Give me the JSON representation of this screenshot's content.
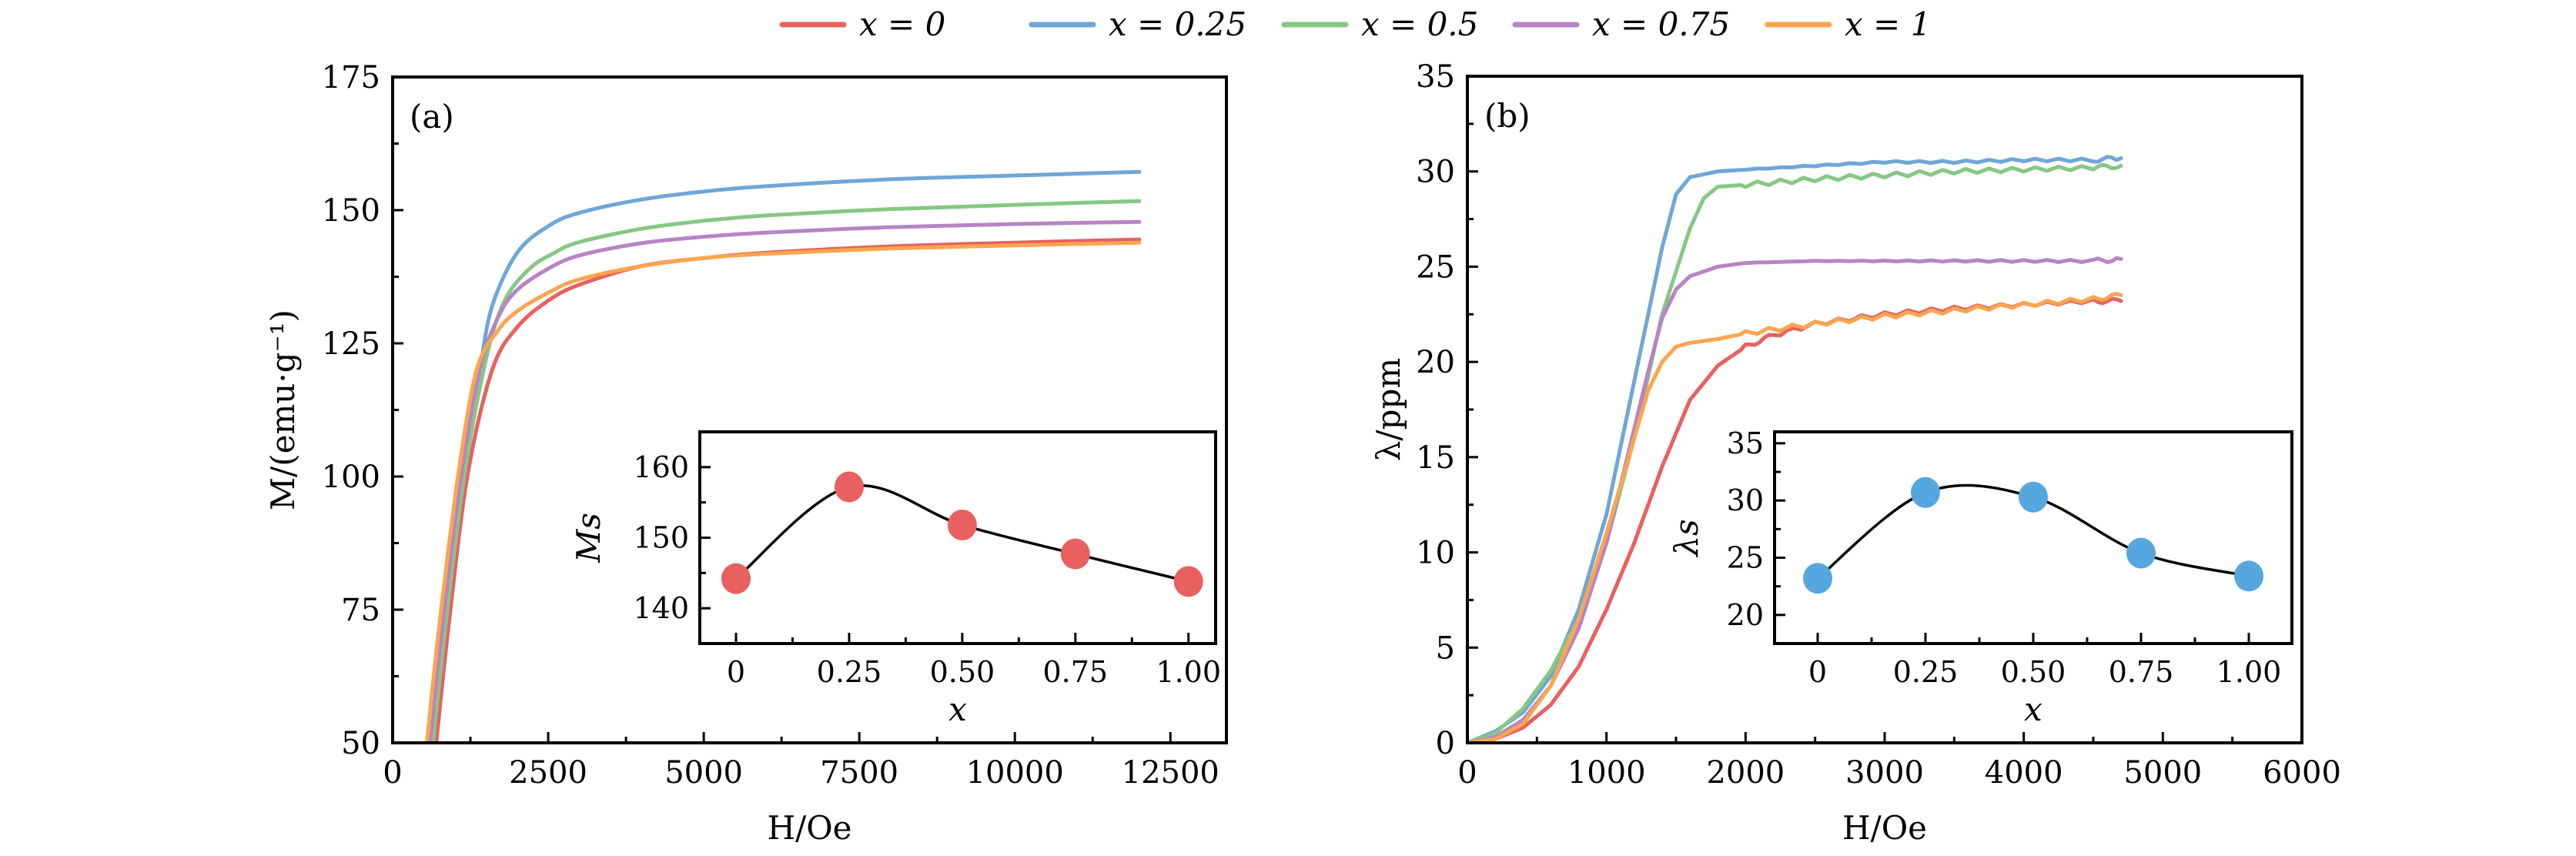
{
  "legend": {
    "placement": "top-center",
    "entries": [
      {
        "label": "x = 0",
        "color": "#e8605f"
      },
      {
        "label": "x = 0.25",
        "color": "#6fa6d6"
      },
      {
        "label": "x = 0.5",
        "color": "#86c784"
      },
      {
        "label": "x = 0.75",
        "color": "#b784c4"
      },
      {
        "label": "x = 1",
        "color": "#fba54f"
      }
    ]
  },
  "chart_data": [
    {
      "id": "a",
      "type": "line",
      "panel_label": "(a)",
      "xlabel": "H/Oe",
      "ylabel": "M/(emu·g⁻¹)",
      "xlim": [
        0,
        13400
      ],
      "ylim": [
        50,
        175
      ],
      "xticks": [
        0,
        2500,
        5000,
        7500,
        10000,
        12500
      ],
      "yticks": [
        50,
        75,
        100,
        125,
        150,
        175
      ],
      "xtick_labels": [
        "0",
        "2500",
        "5000",
        "7500",
        "10000",
        "12500"
      ],
      "ytick_labels": [
        "50",
        "75",
        "100",
        "125",
        "150",
        "175"
      ],
      "grid": false,
      "series": [
        {
          "name": "x = 0",
          "color": "#e8605f",
          "x": [
            700,
            900,
            1200,
            1600,
            2000,
            2500,
            3000,
            4000,
            5000,
            6000,
            8000,
            10000,
            12000
          ],
          "y": [
            50,
            72,
            100,
            120,
            128,
            133,
            136,
            139.5,
            141,
            142,
            143.2,
            143.9,
            144.5
          ]
        },
        {
          "name": "x = 0.25",
          "color": "#6fa6d6",
          "x": [
            600,
            800,
            1100,
            1400,
            1600,
            2000,
            2500,
            3000,
            4000,
            5000,
            6000,
            8000,
            10000,
            12000
          ],
          "y": [
            50,
            72,
            100,
            120,
            132,
            142,
            147,
            149.5,
            152,
            153.5,
            154.5,
            155.8,
            156.5,
            157.2
          ]
        },
        {
          "name": "x = 0.5",
          "color": "#86c784",
          "x": [
            650,
            850,
            1150,
            1500,
            1800,
            2200,
            2600,
            3000,
            4000,
            5000,
            6000,
            8000,
            10000,
            12000
          ],
          "y": [
            50,
            72,
            100,
            122,
            133,
            139,
            142,
            144,
            146.5,
            148,
            149,
            150.2,
            151,
            151.7
          ]
        },
        {
          "name": "x = 0.75",
          "color": "#b784c4",
          "x": [
            600,
            800,
            1100,
            1400,
            1700,
            2000,
            2500,
            3000,
            4000,
            5000,
            6000,
            8000,
            10000,
            12000
          ],
          "y": [
            50,
            72,
            100,
            120,
            130,
            135,
            139,
            141.5,
            143.8,
            145,
            145.8,
            146.8,
            147.4,
            147.8
          ]
        },
        {
          "name": "x = 1",
          "color": "#fba54f",
          "x": [
            550,
            750,
            1050,
            1350,
            1700,
            2000,
            2500,
            3000,
            4000,
            5000,
            6000,
            8000,
            10000,
            12000
          ],
          "y": [
            50,
            72,
            100,
            120,
            127.5,
            131,
            134.5,
            137,
            139.5,
            141,
            141.8,
            142.8,
            143.4,
            143.9
          ]
        }
      ],
      "inset": {
        "type": "line+scatter",
        "xlabel": "x",
        "ylabel": "Ms",
        "xlim": [
          -0.08,
          1.06
        ],
        "ylim": [
          135,
          165
        ],
        "xticks": [
          0,
          0.25,
          0.5,
          0.75,
          1.0
        ],
        "xtick_labels": [
          "0",
          "0.25",
          "0.50",
          "0.75",
          "1.00"
        ],
        "yticks": [
          140,
          150,
          160
        ],
        "ytick_labels": [
          "140",
          "150",
          "160"
        ],
        "marker_color": "#e8605f",
        "x": [
          0,
          0.25,
          0.5,
          0.75,
          1.0
        ],
        "y": [
          144.2,
          157.2,
          151.8,
          147.7,
          143.8
        ]
      }
    },
    {
      "id": "b",
      "type": "line",
      "panel_label": "(b)",
      "xlabel": "H/Oe",
      "ylabel": "λ/ppm",
      "xlim": [
        0,
        6000
      ],
      "ylim": [
        0,
        35
      ],
      "xticks": [
        0,
        1000,
        2000,
        3000,
        4000,
        5000,
        6000
      ],
      "yticks": [
        0,
        5,
        10,
        15,
        20,
        25,
        30,
        35
      ],
      "xtick_labels": [
        "0",
        "1000",
        "2000",
        "3000",
        "4000",
        "5000",
        "6000"
      ],
      "ytick_labels": [
        "0",
        "5",
        "10",
        "15",
        "20",
        "25",
        "30",
        "35"
      ],
      "grid": false,
      "series": [
        {
          "name": "x = 0",
          "color": "#e8605f",
          "x": [
            0,
            200,
            400,
            600,
            800,
            1000,
            1200,
            1400,
            1600,
            1800,
            2000,
            2200,
            2500,
            3000,
            3500,
            4000,
            4500,
            4700
          ],
          "y": [
            0,
            0.2,
            0.8,
            2.0,
            4.0,
            7.0,
            10.5,
            14.5,
            18.0,
            19.8,
            20.8,
            21.4,
            22.0,
            22.5,
            22.8,
            23.0,
            23.2,
            23.2
          ]
        },
        {
          "name": "x = 0.25",
          "color": "#6fa6d6",
          "x": [
            0,
            200,
            400,
            600,
            800,
            1000,
            1200,
            1400,
            1500,
            1600,
            1800,
            2000,
            2500,
            3000,
            3500,
            4000,
            4500,
            4700
          ],
          "y": [
            0,
            0.6,
            1.6,
            3.5,
            7.0,
            12.0,
            19.0,
            26.0,
            28.8,
            29.7,
            30.0,
            30.1,
            30.3,
            30.5,
            30.5,
            30.6,
            30.6,
            30.7
          ]
        },
        {
          "name": "x = 0.5",
          "color": "#86c784",
          "x": [
            0,
            200,
            400,
            600,
            800,
            1000,
            1200,
            1400,
            1600,
            1700,
            1800,
            2000,
            2500,
            3000,
            3500,
            4000,
            4500,
            4700
          ],
          "y": [
            0,
            0.5,
            1.8,
            3.8,
            6.5,
            10.5,
            16.0,
            22.5,
            27.0,
            28.6,
            29.2,
            29.3,
            29.6,
            29.8,
            30.0,
            30.1,
            30.2,
            30.3
          ]
        },
        {
          "name": "x = 0.75",
          "color": "#b784c4",
          "x": [
            0,
            200,
            400,
            600,
            800,
            1000,
            1200,
            1300,
            1400,
            1500,
            1600,
            1800,
            2000,
            2500,
            3000,
            3500,
            4000,
            4500,
            4700
          ],
          "y": [
            0,
            0.3,
            1.2,
            3.0,
            6.0,
            10.5,
            16.5,
            19.5,
            22.3,
            23.8,
            24.5,
            25.0,
            25.2,
            25.3,
            25.3,
            25.3,
            25.3,
            25.3,
            25.4
          ]
        },
        {
          "name": "x = 1",
          "color": "#fba54f",
          "x": [
            0,
            200,
            400,
            600,
            800,
            1000,
            1200,
            1300,
            1400,
            1500,
            1600,
            1800,
            2000,
            2500,
            3000,
            3500,
            4000,
            4500,
            4700
          ],
          "y": [
            0,
            0.2,
            1.0,
            3.0,
            6.5,
            11.0,
            16.0,
            18.5,
            20.0,
            20.8,
            21.0,
            21.2,
            21.5,
            22.0,
            22.4,
            22.7,
            23.0,
            23.3,
            23.5
          ]
        }
      ],
      "inset": {
        "type": "line+scatter",
        "xlabel": "x",
        "ylabel": "λs",
        "xlim": [
          -0.1,
          1.1
        ],
        "ylim": [
          17.5,
          36
        ],
        "xticks": [
          0,
          0.25,
          0.5,
          0.75,
          1.0
        ],
        "xtick_labels": [
          "0",
          "0.25",
          "0.50",
          "0.75",
          "1.00"
        ],
        "yticks": [
          20,
          25,
          30,
          35
        ],
        "ytick_labels": [
          "20",
          "25",
          "30",
          "35"
        ],
        "marker_color": "#56a6df",
        "x": [
          0,
          0.25,
          0.5,
          0.75,
          1.0
        ],
        "y": [
          23.2,
          30.7,
          30.3,
          25.4,
          23.4
        ]
      }
    }
  ]
}
